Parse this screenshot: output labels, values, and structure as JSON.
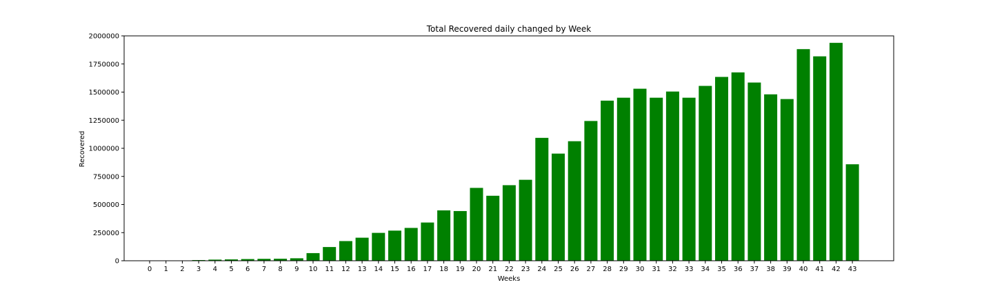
{
  "chart_data": {
    "type": "bar",
    "title": "Total Recovered daily changed by Week",
    "xlabel": "Weeks",
    "ylabel": "Recovered",
    "categories": [
      "0",
      "1",
      "2",
      "3",
      "4",
      "5",
      "6",
      "7",
      "8",
      "9",
      "10",
      "11",
      "12",
      "13",
      "14",
      "15",
      "16",
      "17",
      "18",
      "19",
      "20",
      "21",
      "22",
      "23",
      "24",
      "25",
      "26",
      "27",
      "28",
      "29",
      "30",
      "31",
      "32",
      "33",
      "34",
      "35",
      "36",
      "37",
      "38",
      "39",
      "40",
      "41",
      "42",
      "43"
    ],
    "values": [
      0,
      0,
      500,
      6000,
      10000,
      12000,
      15000,
      17000,
      18000,
      22000,
      68000,
      122000,
      175000,
      205000,
      248000,
      268000,
      292000,
      340000,
      448000,
      442000,
      648000,
      578000,
      672000,
      720000,
      1093000,
      953000,
      1063000,
      1243000,
      1424000,
      1450000,
      1530000,
      1450000,
      1505000,
      1450000,
      1555000,
      1635000,
      1675000,
      1585000,
      1480000,
      1438000,
      1882000,
      1818000,
      1938000,
      858000
    ],
    "ylim": [
      0,
      2000000
    ],
    "yticks": [
      0,
      250000,
      500000,
      750000,
      1000000,
      1250000,
      1500000,
      1750000,
      2000000
    ],
    "bar_color": "#008000",
    "grid": false,
    "legend": false
  }
}
